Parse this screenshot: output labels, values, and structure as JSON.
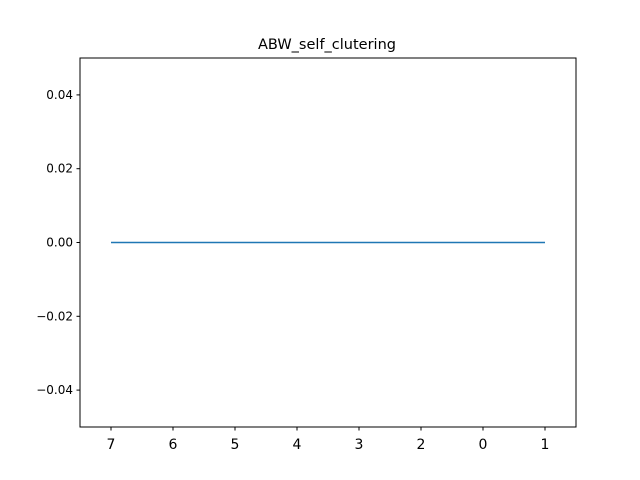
{
  "chart_data": {
    "type": "line",
    "title": "ABW_self_clutering",
    "xlabel": "",
    "ylabel": "",
    "categories": [
      "7",
      "6",
      "5",
      "4",
      "3",
      "2",
      "0",
      "1"
    ],
    "series": [
      {
        "values": [
          0,
          0,
          0,
          0,
          0,
          0,
          0,
          0
        ],
        "color": "#1f77b4"
      }
    ],
    "ylim": [
      -0.05,
      0.05
    ],
    "yticks": [
      -0.04,
      -0.02,
      0.0,
      0.02,
      0.04
    ],
    "ytick_labels": [
      "−0.04",
      "−0.02",
      "0.00",
      "0.02",
      "0.04"
    ],
    "grid": false,
    "legend": "none"
  }
}
